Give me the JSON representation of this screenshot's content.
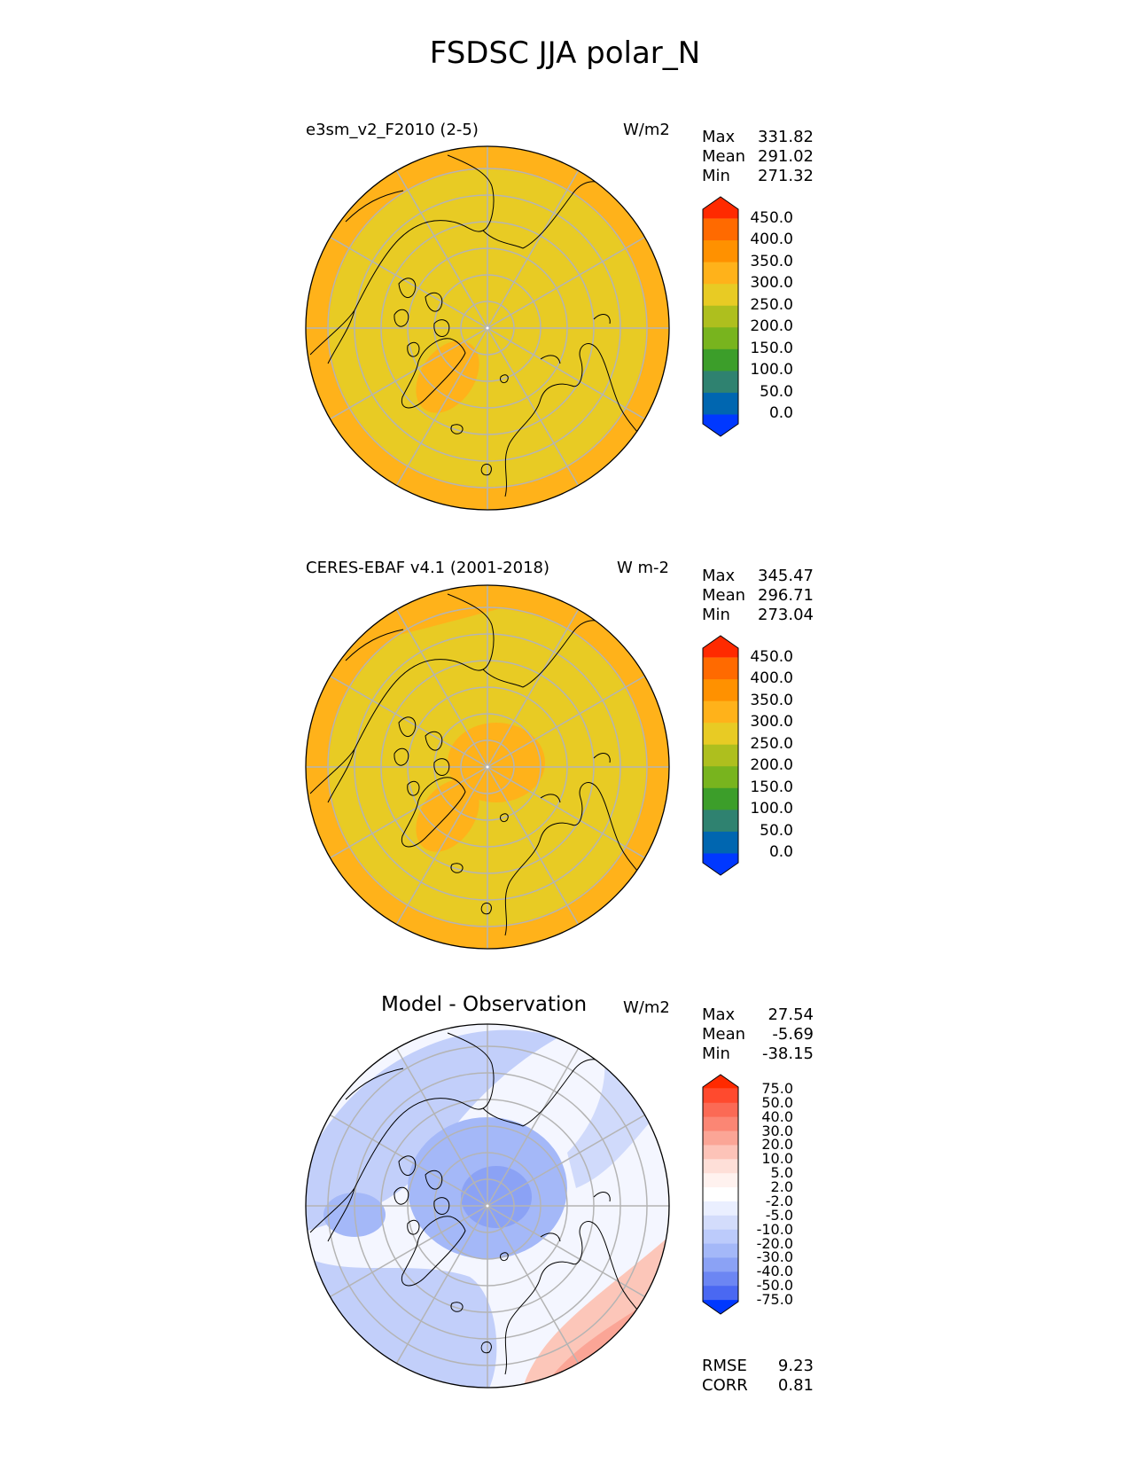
{
  "title": "FSDSC JJA polar_N",
  "colors": {
    "land_outline": "#000000",
    "graticule": "#b4b4b4"
  },
  "panels": [
    {
      "id": "model",
      "title": "e3sm_v2_F2010 (2-5)",
      "units": "W/m2",
      "stats": [
        {
          "label": "Max",
          "value": "331.82"
        },
        {
          "label": "Mean",
          "value": "291.02"
        },
        {
          "label": "Min",
          "value": "271.32"
        }
      ],
      "colorbar": {
        "ticks": [
          "450.0",
          "400.0",
          "350.0",
          "300.0",
          "250.0",
          "200.0",
          "150.0",
          "100.0",
          "50.0",
          "0.0"
        ],
        "colors": [
          "#ff2a00",
          "#ff6a00",
          "#ff9100",
          "#ffb21a",
          "#e8cb24",
          "#aebf1e",
          "#78b41e",
          "#3c9e2a",
          "#2f8270",
          "#0066b0",
          "#0038ff"
        ]
      },
      "field": {
        "base": "#e8cb24",
        "rim": "#ffb21a"
      }
    },
    {
      "id": "obs",
      "title": "CERES-EBAF v4.1 (2001-2018)",
      "units": "W m-2",
      "stats": [
        {
          "label": "Max",
          "value": "345.47"
        },
        {
          "label": "Mean",
          "value": "296.71"
        },
        {
          "label": "Min",
          "value": "273.04"
        }
      ],
      "colorbar": {
        "ticks": [
          "450.0",
          "400.0",
          "350.0",
          "300.0",
          "250.0",
          "200.0",
          "150.0",
          "100.0",
          "50.0",
          "0.0"
        ],
        "colors": [
          "#ff2a00",
          "#ff6a00",
          "#ff9100",
          "#ffb21a",
          "#e8cb24",
          "#aebf1e",
          "#78b41e",
          "#3c9e2a",
          "#2f8270",
          "#0066b0",
          "#0038ff"
        ]
      },
      "field": {
        "base": "#e8cb24",
        "rim": "#ffb21a"
      }
    },
    {
      "id": "diff",
      "title": "Model - Observation",
      "units": "W/m2",
      "stats": [
        {
          "label": "Max",
          "value": "27.54"
        },
        {
          "label": "Mean",
          "value": "-5.69"
        },
        {
          "label": "Min",
          "value": "-38.15"
        }
      ],
      "colorbar": {
        "ticks": [
          "75.0",
          "50.0",
          "40.0",
          "30.0",
          "20.0",
          "10.0",
          "5.0",
          "2.0",
          "-2.0",
          "-5.0",
          "-10.0",
          "-20.0",
          "-30.0",
          "-40.0",
          "-50.0",
          "-75.0"
        ],
        "colors": [
          "#ff2a00",
          "#ff4a2e",
          "#fb6a55",
          "#fb8674",
          "#fba596",
          "#fdc3b8",
          "#fedfd8",
          "#fff2ef",
          "#ffffff",
          "#eaefff",
          "#d3dcfb",
          "#bccbfb",
          "#a4b8f8",
          "#8ba2f5",
          "#6c86f3",
          "#4a68f2",
          "#0038ff"
        ]
      },
      "footer_stats": [
        {
          "label": "RMSE",
          "value": "9.23"
        },
        {
          "label": "CORR",
          "value": "0.81"
        }
      ],
      "field": {
        "base": "#c2cffa",
        "rim": "#ffffff"
      }
    }
  ]
}
